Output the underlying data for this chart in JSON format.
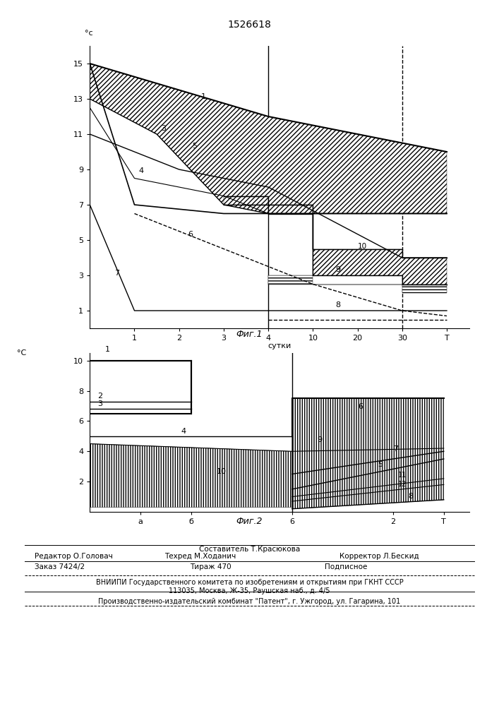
{
  "title": "1526618",
  "fig1_title": "Фиг.1",
  "fig2_title": "Фиг.2",
  "bg_color": "#ffffff"
}
